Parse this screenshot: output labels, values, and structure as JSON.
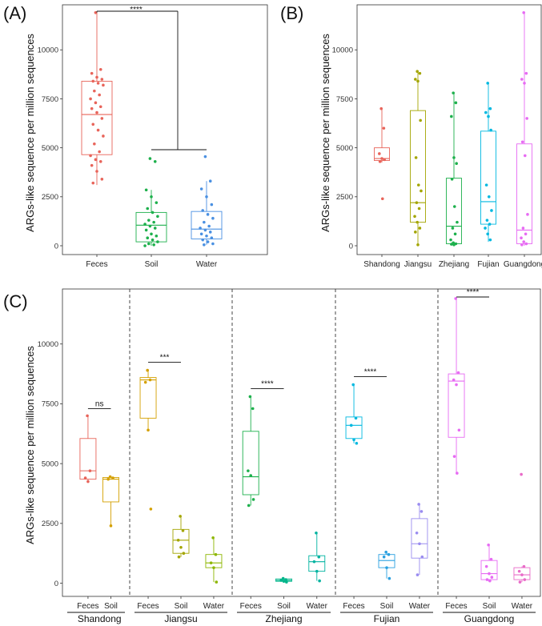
{
  "chart_data": [
    {
      "panel": "(A)",
      "type": "boxplot",
      "ylabel": "ARGs-like sequence per million sequences",
      "ylim": [
        0,
        12300
      ],
      "yticks": [
        0,
        2500,
        5000,
        7500,
        10000
      ],
      "categories": [
        "Feces",
        "Soil",
        "Water"
      ],
      "colors": [
        "#e8645a",
        "#1db04c",
        "#4a90e2"
      ],
      "boxes": [
        {
          "q1": 4650,
          "median": 6700,
          "q3": 8400,
          "wmin": 3100,
          "wmax": 11900,
          "points": [
            11900,
            9000,
            8800,
            8600,
            8500,
            8400,
            8300,
            8200,
            7900,
            7700,
            7500,
            7300,
            7100,
            7000,
            6800,
            6500,
            6200,
            5900,
            5600,
            5200,
            4800,
            4600,
            4400,
            4300,
            4100,
            3800,
            3400,
            3200
          ]
        },
        {
          "q1": 200,
          "median": 1050,
          "q3": 1700,
          "wmin": 0,
          "wmax": 2850,
          "points": [
            4450,
            4300,
            2850,
            2500,
            2200,
            1900,
            1700,
            1500,
            1300,
            1200,
            1100,
            1000,
            900,
            800,
            600,
            500,
            400,
            300,
            200,
            100,
            50,
            0
          ]
        },
        {
          "q1": 350,
          "median": 850,
          "q3": 1750,
          "wmin": 50,
          "wmax": 3300,
          "points": [
            4550,
            3300,
            2900,
            2500,
            2100,
            1800,
            1600,
            1400,
            1200,
            1000,
            900,
            800,
            700,
            600,
            500,
            400,
            300,
            200,
            100,
            50
          ]
        }
      ],
      "significance": "****"
    },
    {
      "panel": "(B)",
      "type": "boxplot",
      "ylabel": "ARGs-like sequence per million sequences",
      "ylim": [
        0,
        12300
      ],
      "yticks": [
        0,
        2500,
        5000,
        7500,
        10000
      ],
      "categories": [
        "Shandong",
        "Jiangsu",
        "Zhejiang",
        "Fujian",
        "Guangdong"
      ],
      "colors": [
        "#e8645a",
        "#a3a500",
        "#1db04c",
        "#00b8e0",
        "#e76bf3"
      ],
      "boxes": [
        {
          "q1": 4350,
          "median": 4450,
          "q3": 5000,
          "wmin": 4250,
          "wmax": 7000,
          "points": [
            7000,
            6000,
            4700,
            4450,
            4400,
            4300,
            2400
          ]
        },
        {
          "q1": 1200,
          "median": 2200,
          "q3": 6900,
          "wmin": 50,
          "wmax": 8900,
          "points": [
            8900,
            8800,
            8500,
            8400,
            6400,
            4500,
            3100,
            2800,
            2200,
            1900,
            1500,
            1200,
            900,
            700,
            50
          ]
        },
        {
          "q1": 100,
          "median": 1000,
          "q3": 3450,
          "wmin": 0,
          "wmax": 7800,
          "points": [
            7800,
            7300,
            6600,
            4500,
            4200,
            3400,
            2000,
            1200,
            900,
            600,
            300,
            150,
            100,
            80,
            50
          ]
        },
        {
          "q1": 1100,
          "median": 2250,
          "q3": 5850,
          "wmin": 200,
          "wmax": 8300,
          "points": [
            8300,
            7000,
            6800,
            6600,
            5900,
            3100,
            2500,
            1800,
            1300,
            1100,
            900,
            600,
            300
          ]
        },
        {
          "q1": 100,
          "median": 800,
          "q3": 5200,
          "wmin": 0,
          "wmax": 11900,
          "points": [
            11900,
            8800,
            8500,
            8300,
            6500,
            5300,
            4600,
            1600,
            900,
            600,
            400,
            200,
            100,
            50
          ]
        }
      ]
    },
    {
      "panel": "(C)",
      "type": "boxplot",
      "ylabel": "ARGs-like sequence per million sequences",
      "ylim": [
        0,
        12300
      ],
      "yticks": [
        0,
        2500,
        5000,
        7500,
        10000
      ],
      "groups": [
        {
          "province": "Shandong",
          "boxes": [
            {
              "category": "Feces",
              "color": "#e8645a",
              "q1": 4350,
              "median": 4700,
              "q3": 6050,
              "wmin": 4200,
              "wmax": 7000,
              "points": [
                7000,
                4700,
                4400,
                4250
              ]
            },
            {
              "category": "Soil",
              "color": "#d4a000",
              "q1": 3400,
              "median": 4350,
              "q3": 4420,
              "wmin": 2400,
              "wmax": 4450,
              "points": [
                4450,
                4400,
                4350,
                2400
              ]
            }
          ],
          "significance": "ns"
        },
        {
          "province": "Jiangsu",
          "boxes": [
            {
              "category": "Feces",
              "color": "#d4a000",
              "q1": 6900,
              "median": 8500,
              "q3": 8600,
              "wmin": 6400,
              "wmax": 8900,
              "points": [
                8900,
                8500,
                8400,
                6400,
                3100
              ]
            },
            {
              "category": "Soil",
              "color": "#a3a500",
              "q1": 1250,
              "median": 1800,
              "q3": 2250,
              "wmin": 1100,
              "wmax": 2800,
              "points": [
                2800,
                2200,
                1800,
                1500,
                1250,
                1100
              ]
            },
            {
              "category": "Water",
              "color": "#8db600",
              "q1": 650,
              "median": 850,
              "q3": 1200,
              "wmin": 50,
              "wmax": 1900,
              "points": [
                1900,
                1200,
                850,
                650,
                50
              ]
            }
          ],
          "significance": "***"
        },
        {
          "province": "Zhejiang",
          "boxes": [
            {
              "category": "Feces",
              "color": "#1db04c",
              "q1": 3700,
              "median": 4450,
              "q3": 6350,
              "wmin": 3250,
              "wmax": 7800,
              "points": [
                7800,
                7300,
                4700,
                4500,
                3500,
                3250
              ]
            },
            {
              "category": "Soil",
              "color": "#00b58a",
              "q1": 80,
              "median": 120,
              "q3": 180,
              "wmin": 50,
              "wmax": 200,
              "points": [
                200,
                150,
                120,
                80,
                50
              ]
            },
            {
              "category": "Water",
              "color": "#00b3a0",
              "q1": 500,
              "median": 900,
              "q3": 1150,
              "wmin": 100,
              "wmax": 2100,
              "points": [
                2100,
                1100,
                900,
                500,
                100
              ]
            }
          ],
          "significance": "****"
        },
        {
          "province": "Fujian",
          "boxes": [
            {
              "category": "Feces",
              "color": "#00b8e0",
              "q1": 6050,
              "median": 6600,
              "q3": 6950,
              "wmin": 5850,
              "wmax": 8300,
              "points": [
                8300,
                6900,
                6600,
                6000,
                5850
              ]
            },
            {
              "category": "Soil",
              "color": "#2aa0e0",
              "q1": 650,
              "median": 950,
              "q3": 1200,
              "wmin": 200,
              "wmax": 1300,
              "points": [
                1300,
                1200,
                1100,
                650,
                200
              ]
            },
            {
              "category": "Water",
              "color": "#9a8cf0",
              "q1": 1050,
              "median": 1650,
              "q3": 2700,
              "wmin": 350,
              "wmax": 3300,
              "points": [
                3300,
                3000,
                2100,
                1650,
                1100,
                350
              ]
            }
          ],
          "significance": "****"
        },
        {
          "province": "Guangdong",
          "boxes": [
            {
              "category": "Feces",
              "color": "#e76bf3",
              "q1": 6100,
              "median": 8450,
              "q3": 8750,
              "wmin": 4600,
              "wmax": 11900,
              "points": [
                11900,
                8800,
                8500,
                8300,
                6400,
                5300,
                4600
              ]
            },
            {
              "category": "Soil",
              "color": "#e76bf3",
              "q1": 150,
              "median": 400,
              "q3": 950,
              "wmin": 100,
              "wmax": 1600,
              "points": [
                1600,
                1000,
                700,
                400,
                250,
                150,
                100
              ]
            },
            {
              "category": "Water",
              "color": "#e96bc8",
              "q1": 150,
              "median": 350,
              "q3": 650,
              "wmin": 50,
              "wmax": 700,
              "points": [
                4550,
                700,
                500,
                350,
                150,
                50
              ]
            }
          ],
          "significance": "****"
        }
      ]
    }
  ]
}
